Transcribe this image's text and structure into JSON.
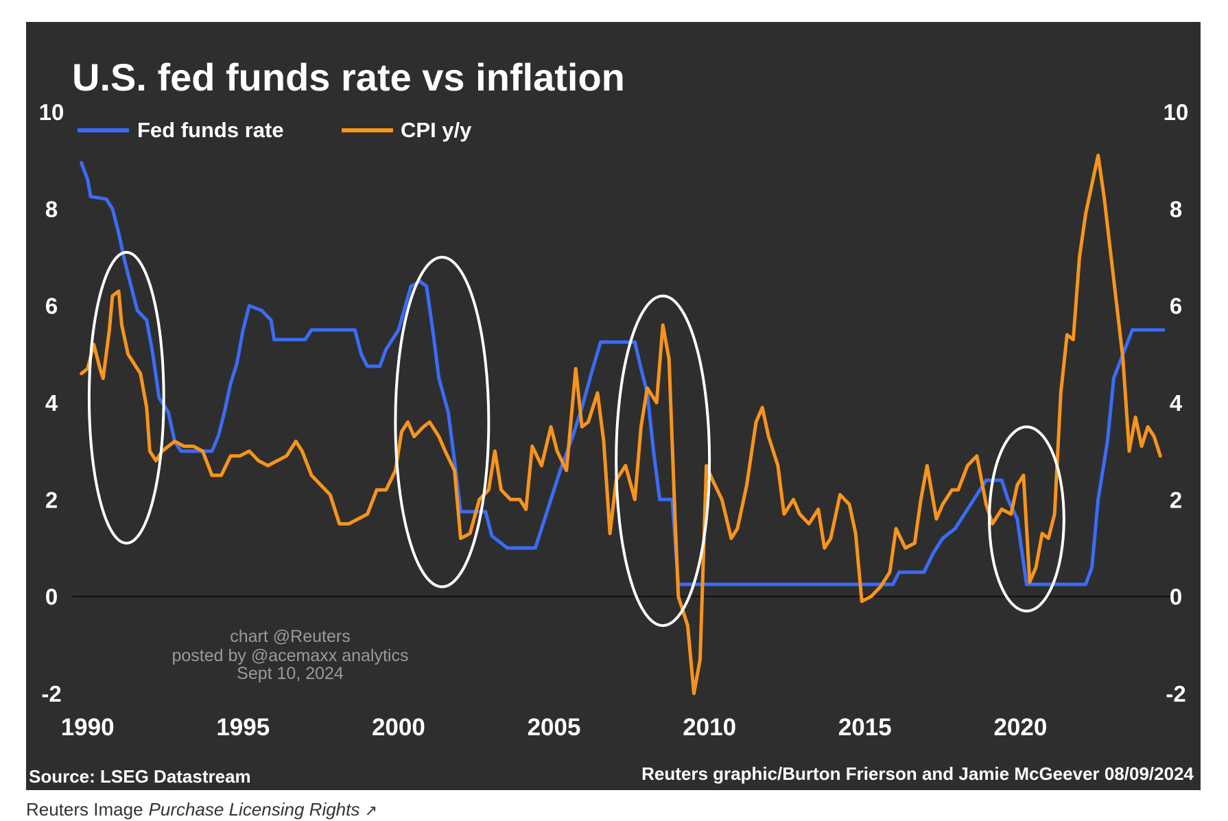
{
  "chart_data": {
    "type": "line",
    "title": "U.S. fed funds rate vs inflation",
    "source": "Source: LSEG Datastream",
    "credit": "Reuters graphic/Burton Frierson and Jamie McGeever 08/09/2024",
    "watermark": [
      "chart @Reuters",
      "posted by @acemaxx analytics",
      "Sept 10, 2024"
    ],
    "xlim": [
      1989.5,
      2025
    ],
    "ylim": [
      -2,
      10
    ],
    "x_ticks": [
      "1990",
      "1995",
      "2000",
      "2005",
      "2010",
      "2015",
      "2020"
    ],
    "x_tick_values": [
      1990,
      1995,
      2000,
      2005,
      2010,
      2015,
      2020
    ],
    "y_ticks": [
      "10",
      "8",
      "6",
      "4",
      "2",
      "0",
      "-2"
    ],
    "y_tick_values": [
      10,
      8,
      6,
      4,
      2,
      0,
      -2
    ],
    "legend_position": "top-left",
    "series": [
      {
        "name": "Fed funds rate",
        "color": "#3b6cf6",
        "points": [
          [
            1989.8,
            8.95
          ],
          [
            1990.0,
            8.6
          ],
          [
            1990.1,
            8.25
          ],
          [
            1990.6,
            8.2
          ],
          [
            1990.8,
            8.0
          ],
          [
            1991.0,
            7.5
          ],
          [
            1991.2,
            6.9
          ],
          [
            1991.4,
            6.4
          ],
          [
            1991.6,
            5.9
          ],
          [
            1991.9,
            5.7
          ],
          [
            1992.1,
            5.0
          ],
          [
            1992.3,
            4.1
          ],
          [
            1992.6,
            3.8
          ],
          [
            1992.8,
            3.2
          ],
          [
            1993.0,
            3.0
          ],
          [
            1994.0,
            3.0
          ],
          [
            1994.2,
            3.3
          ],
          [
            1994.4,
            3.8
          ],
          [
            1994.6,
            4.4
          ],
          [
            1994.8,
            4.8
          ],
          [
            1995.0,
            5.5
          ],
          [
            1995.2,
            6.0
          ],
          [
            1995.6,
            5.9
          ],
          [
            1995.9,
            5.7
          ],
          [
            1996.0,
            5.3
          ],
          [
            1997.0,
            5.3
          ],
          [
            1997.2,
            5.5
          ],
          [
            1998.6,
            5.5
          ],
          [
            1998.8,
            5.0
          ],
          [
            1999.0,
            4.75
          ],
          [
            1999.4,
            4.75
          ],
          [
            1999.6,
            5.1
          ],
          [
            2000.0,
            5.5
          ],
          [
            2000.4,
            6.4
          ],
          [
            2000.7,
            6.5
          ],
          [
            2000.9,
            6.4
          ],
          [
            2001.1,
            5.5
          ],
          [
            2001.3,
            4.5
          ],
          [
            2001.6,
            3.8
          ],
          [
            2001.8,
            2.8
          ],
          [
            2002.0,
            1.75
          ],
          [
            2002.8,
            1.75
          ],
          [
            2003.0,
            1.25
          ],
          [
            2003.5,
            1.0
          ],
          [
            2004.4,
            1.0
          ],
          [
            2004.6,
            1.4
          ],
          [
            2004.9,
            2.0
          ],
          [
            2005.2,
            2.6
          ],
          [
            2005.6,
            3.3
          ],
          [
            2005.9,
            3.9
          ],
          [
            2006.2,
            4.6
          ],
          [
            2006.5,
            5.25
          ],
          [
            2007.6,
            5.25
          ],
          [
            2007.8,
            4.7
          ],
          [
            2008.0,
            4.2
          ],
          [
            2008.2,
            3.0
          ],
          [
            2008.4,
            2.0
          ],
          [
            2008.8,
            2.0
          ],
          [
            2009.0,
            0.25
          ],
          [
            2015.9,
            0.25
          ],
          [
            2016.1,
            0.5
          ],
          [
            2016.9,
            0.5
          ],
          [
            2017.2,
            0.9
          ],
          [
            2017.5,
            1.2
          ],
          [
            2017.9,
            1.4
          ],
          [
            2018.2,
            1.7
          ],
          [
            2018.6,
            2.1
          ],
          [
            2018.9,
            2.4
          ],
          [
            2019.4,
            2.4
          ],
          [
            2019.6,
            2.0
          ],
          [
            2019.9,
            1.6
          ],
          [
            2020.2,
            0.25
          ],
          [
            2022.1,
            0.25
          ],
          [
            2022.3,
            0.6
          ],
          [
            2022.5,
            2.0
          ],
          [
            2022.8,
            3.2
          ],
          [
            2023.0,
            4.5
          ],
          [
            2023.3,
            5.0
          ],
          [
            2023.6,
            5.5
          ],
          [
            2024.6,
            5.5
          ]
        ]
      },
      {
        "name": "CPI y/y",
        "color": "#f7941d",
        "points": [
          [
            1989.8,
            4.6
          ],
          [
            1990.0,
            4.7
          ],
          [
            1990.2,
            5.2
          ],
          [
            1990.4,
            4.7
          ],
          [
            1990.5,
            4.5
          ],
          [
            1990.7,
            5.5
          ],
          [
            1990.8,
            6.2
          ],
          [
            1991.0,
            6.3
          ],
          [
            1991.1,
            5.6
          ],
          [
            1991.3,
            5.0
          ],
          [
            1991.5,
            4.8
          ],
          [
            1991.7,
            4.6
          ],
          [
            1991.9,
            3.9
          ],
          [
            1992.0,
            3.0
          ],
          [
            1992.2,
            2.8
          ],
          [
            1992.4,
            3.0
          ],
          [
            1992.6,
            3.1
          ],
          [
            1992.8,
            3.2
          ],
          [
            1993.1,
            3.1
          ],
          [
            1993.4,
            3.1
          ],
          [
            1993.7,
            3.0
          ],
          [
            1994.0,
            2.5
          ],
          [
            1994.3,
            2.5
          ],
          [
            1994.6,
            2.9
          ],
          [
            1994.9,
            2.9
          ],
          [
            1995.2,
            3.0
          ],
          [
            1995.5,
            2.8
          ],
          [
            1995.8,
            2.7
          ],
          [
            1996.1,
            2.8
          ],
          [
            1996.4,
            2.9
          ],
          [
            1996.7,
            3.2
          ],
          [
            1996.9,
            3.0
          ],
          [
            1997.2,
            2.5
          ],
          [
            1997.5,
            2.3
          ],
          [
            1997.8,
            2.1
          ],
          [
            1998.1,
            1.5
          ],
          [
            1998.4,
            1.5
          ],
          [
            1998.7,
            1.6
          ],
          [
            1999.0,
            1.7
          ],
          [
            1999.3,
            2.2
          ],
          [
            1999.6,
            2.2
          ],
          [
            1999.9,
            2.6
          ],
          [
            2000.1,
            3.4
          ],
          [
            2000.3,
            3.6
          ],
          [
            2000.5,
            3.3
          ],
          [
            2000.8,
            3.5
          ],
          [
            2001.0,
            3.6
          ],
          [
            2001.3,
            3.3
          ],
          [
            2001.5,
            3.0
          ],
          [
            2001.8,
            2.6
          ],
          [
            2002.0,
            1.2
          ],
          [
            2002.3,
            1.3
          ],
          [
            2002.6,
            2.0
          ],
          [
            2002.9,
            2.2
          ],
          [
            2003.1,
            3.0
          ],
          [
            2003.3,
            2.2
          ],
          [
            2003.6,
            2.0
          ],
          [
            2003.9,
            2.0
          ],
          [
            2004.1,
            1.8
          ],
          [
            2004.3,
            3.1
          ],
          [
            2004.6,
            2.7
          ],
          [
            2004.9,
            3.5
          ],
          [
            2005.1,
            3.0
          ],
          [
            2005.4,
            2.6
          ],
          [
            2005.7,
            4.7
          ],
          [
            2005.9,
            3.5
          ],
          [
            2006.1,
            3.6
          ],
          [
            2006.4,
            4.2
          ],
          [
            2006.6,
            3.2
          ],
          [
            2006.8,
            1.3
          ],
          [
            2007.0,
            2.4
          ],
          [
            2007.3,
            2.7
          ],
          [
            2007.6,
            2.0
          ],
          [
            2007.8,
            3.5
          ],
          [
            2008.0,
            4.3
          ],
          [
            2008.3,
            4.0
          ],
          [
            2008.5,
            5.6
          ],
          [
            2008.7,
            4.9
          ],
          [
            2008.9,
            1.5
          ],
          [
            2009.0,
            0.0
          ],
          [
            2009.3,
            -0.6
          ],
          [
            2009.5,
            -2.0
          ],
          [
            2009.7,
            -1.3
          ],
          [
            2009.9,
            2.7
          ],
          [
            2010.1,
            2.4
          ],
          [
            2010.4,
            2.0
          ],
          [
            2010.7,
            1.2
          ],
          [
            2010.9,
            1.4
          ],
          [
            2011.2,
            2.3
          ],
          [
            2011.5,
            3.6
          ],
          [
            2011.7,
            3.9
          ],
          [
            2011.9,
            3.3
          ],
          [
            2012.2,
            2.7
          ],
          [
            2012.4,
            1.7
          ],
          [
            2012.7,
            2.0
          ],
          [
            2012.9,
            1.7
          ],
          [
            2013.2,
            1.5
          ],
          [
            2013.5,
            1.8
          ],
          [
            2013.7,
            1.0
          ],
          [
            2013.9,
            1.2
          ],
          [
            2014.2,
            2.1
          ],
          [
            2014.5,
            1.9
          ],
          [
            2014.7,
            1.3
          ],
          [
            2014.9,
            -0.1
          ],
          [
            2015.2,
            0.0
          ],
          [
            2015.5,
            0.2
          ],
          [
            2015.8,
            0.5
          ],
          [
            2016.0,
            1.4
          ],
          [
            2016.3,
            1.0
          ],
          [
            2016.6,
            1.1
          ],
          [
            2016.8,
            2.0
          ],
          [
            2017.0,
            2.7
          ],
          [
            2017.3,
            1.6
          ],
          [
            2017.5,
            1.9
          ],
          [
            2017.8,
            2.2
          ],
          [
            2018.0,
            2.2
          ],
          [
            2018.3,
            2.7
          ],
          [
            2018.6,
            2.9
          ],
          [
            2018.9,
            1.9
          ],
          [
            2019.1,
            1.5
          ],
          [
            2019.4,
            1.8
          ],
          [
            2019.7,
            1.7
          ],
          [
            2019.9,
            2.3
          ],
          [
            2020.1,
            2.5
          ],
          [
            2020.3,
            0.3
          ],
          [
            2020.5,
            0.6
          ],
          [
            2020.7,
            1.3
          ],
          [
            2020.9,
            1.2
          ],
          [
            2021.1,
            1.7
          ],
          [
            2021.3,
            4.2
          ],
          [
            2021.5,
            5.4
          ],
          [
            2021.7,
            5.3
          ],
          [
            2021.9,
            7.0
          ],
          [
            2022.1,
            7.9
          ],
          [
            2022.3,
            8.5
          ],
          [
            2022.5,
            9.1
          ],
          [
            2022.7,
            8.2
          ],
          [
            2022.9,
            7.1
          ],
          [
            2023.1,
            6.0
          ],
          [
            2023.3,
            4.9
          ],
          [
            2023.5,
            3.0
          ],
          [
            2023.7,
            3.7
          ],
          [
            2023.9,
            3.1
          ],
          [
            2024.1,
            3.5
          ],
          [
            2024.3,
            3.3
          ],
          [
            2024.5,
            2.9
          ]
        ]
      }
    ],
    "annotations": [
      {
        "type": "ellipse",
        "cx": 1991.25,
        "cy": 4.1,
        "rx": 1.2,
        "ry": 3.0
      },
      {
        "type": "ellipse",
        "cx": 2001.4,
        "cy": 3.6,
        "rx": 1.5,
        "ry": 3.4
      },
      {
        "type": "ellipse",
        "cx": 2008.5,
        "cy": 2.8,
        "rx": 1.5,
        "ry": 3.4
      },
      {
        "type": "ellipse",
        "cx": 2020.2,
        "cy": 1.6,
        "rx": 1.2,
        "ry": 1.9
      }
    ]
  },
  "caption": {
    "text": "Reuters Image",
    "link": "Purchase Licensing Rights",
    "link_icon": "external-link-icon"
  }
}
